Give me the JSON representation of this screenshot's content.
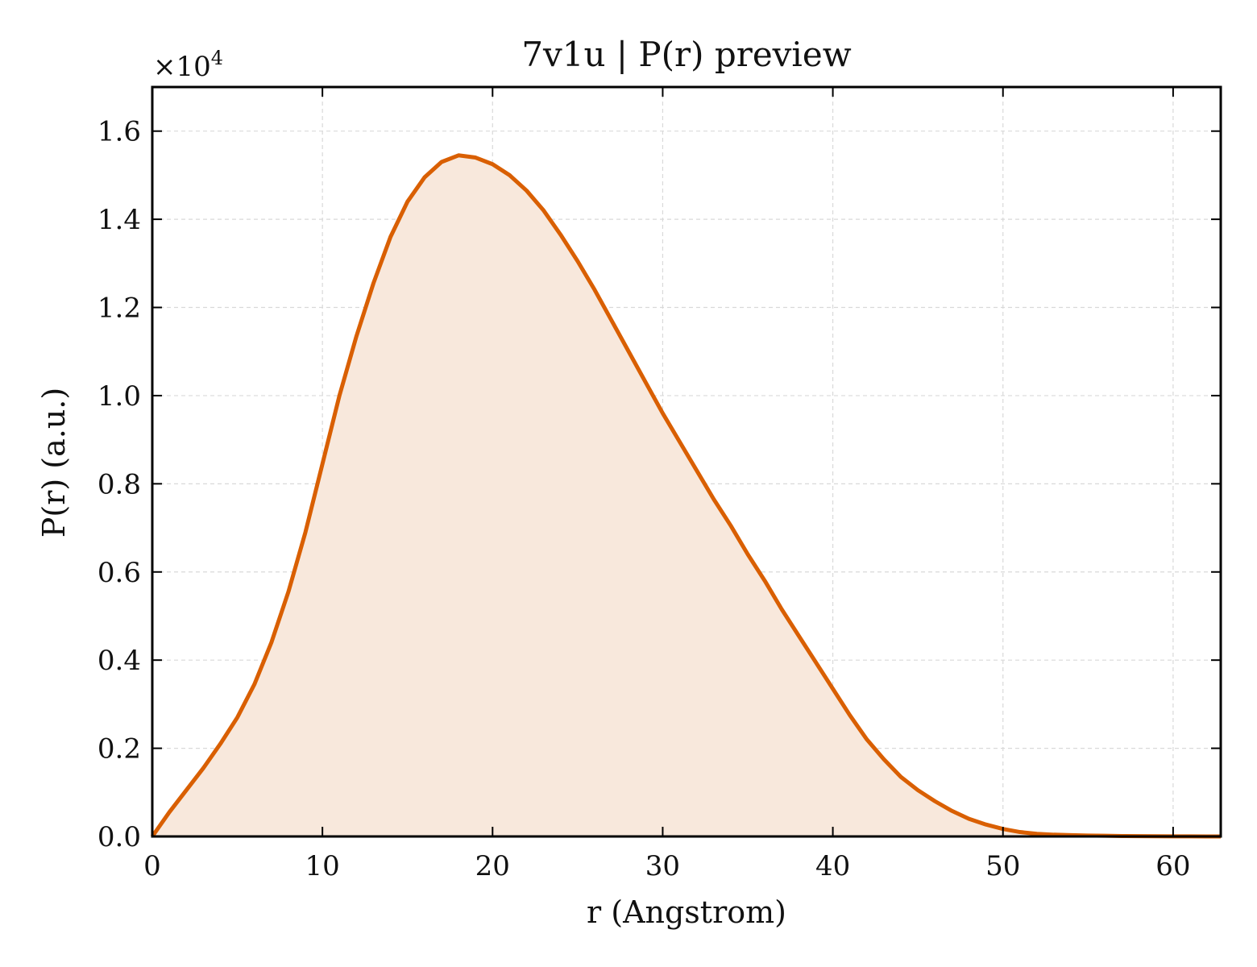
{
  "chart_data": {
    "type": "area",
    "title": "7v1u | P(r) preview",
    "xlabel": "r (Angstrom)",
    "ylabel": "P(r) (a.u.)",
    "y_multiplier": {
      "base": "×10",
      "exponent": "4"
    },
    "xlim": [
      0,
      62.8
    ],
    "ylim": [
      0,
      1.7
    ],
    "x_ticks": [
      0,
      10,
      20,
      30,
      40,
      50,
      60
    ],
    "x_tick_labels": [
      "0",
      "10",
      "20",
      "30",
      "40",
      "50",
      "60"
    ],
    "y_ticks": [
      0,
      0.2,
      0.4,
      0.6,
      0.8,
      1.0,
      1.2,
      1.4,
      1.6
    ],
    "y_tick_labels": [
      "0.0",
      "0.2",
      "0.4",
      "0.6",
      "0.8",
      "1.0",
      "1.2",
      "1.4",
      "1.6"
    ],
    "grid": true,
    "colors": {
      "line": "#d95f02",
      "fill": "#f8e8dc",
      "grid": "#d9d9d9",
      "axis": "#000000"
    },
    "series": [
      {
        "x": [
          0,
          1,
          2,
          3,
          4,
          5,
          6,
          7,
          8,
          9,
          10,
          11,
          12,
          13,
          14,
          15,
          16,
          17,
          18,
          19,
          20,
          21,
          22,
          23,
          24,
          25,
          26,
          27,
          28,
          29,
          30,
          31,
          32,
          33,
          34,
          35,
          36,
          37,
          38,
          39,
          40,
          41,
          42,
          43,
          44,
          45,
          46,
          47,
          48,
          49,
          50,
          51,
          52,
          53,
          54,
          55,
          56,
          57,
          58,
          59,
          60,
          61,
          62,
          62.8
        ],
        "y": [
          0.0,
          0.055,
          0.105,
          0.155,
          0.21,
          0.27,
          0.345,
          0.44,
          0.555,
          0.69,
          0.845,
          1.0,
          1.135,
          1.255,
          1.36,
          1.44,
          1.495,
          1.53,
          1.545,
          1.54,
          1.525,
          1.5,
          1.465,
          1.42,
          1.365,
          1.305,
          1.24,
          1.17,
          1.1,
          1.03,
          0.96,
          0.895,
          0.83,
          0.765,
          0.705,
          0.64,
          0.58,
          0.515,
          0.455,
          0.395,
          0.335,
          0.275,
          0.22,
          0.175,
          0.135,
          0.105,
          0.08,
          0.058,
          0.04,
          0.027,
          0.017,
          0.01,
          0.006,
          0.004,
          0.003,
          0.002,
          0.0015,
          0.001,
          0.0006,
          0.0004,
          0.0003,
          0.0002,
          0.0001,
          0.0
        ]
      }
    ]
  }
}
